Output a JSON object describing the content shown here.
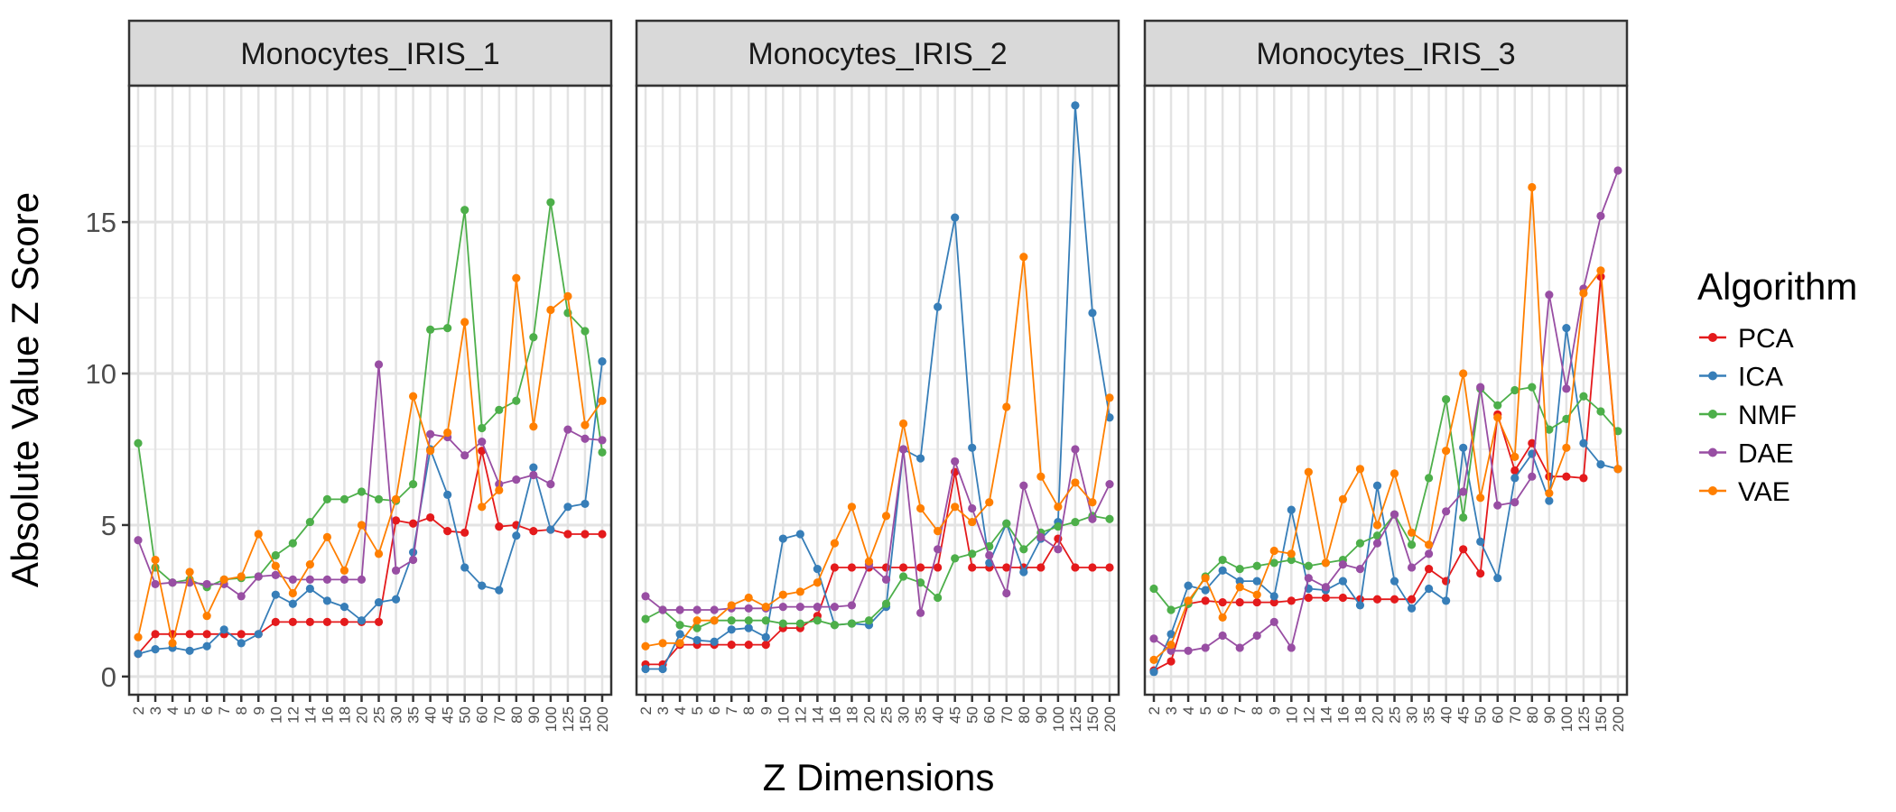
{
  "chart_data": {
    "type": "line",
    "xlabel": "Z Dimensions",
    "ylabel": "Absolute Value Z Score",
    "ylim": [
      -0.6,
      19.5
    ],
    "yticks": [
      0,
      5,
      10,
      15
    ],
    "grid": true,
    "legend": {
      "title": "Algorithm",
      "placement": "right"
    },
    "categories": [
      "2",
      "3",
      "4",
      "5",
      "6",
      "7",
      "8",
      "9",
      "10",
      "12",
      "14",
      "16",
      "18",
      "20",
      "25",
      "30",
      "35",
      "40",
      "45",
      "50",
      "60",
      "70",
      "80",
      "90",
      "100",
      "125",
      "150",
      "200"
    ],
    "series_styles": [
      {
        "name": "PCA",
        "color": "#E41A1C"
      },
      {
        "name": "ICA",
        "color": "#377EB8"
      },
      {
        "name": "NMF",
        "color": "#4DAF4A"
      },
      {
        "name": "DAE",
        "color": "#984EA3"
      },
      {
        "name": "VAE",
        "color": "#FF7F00"
      }
    ],
    "panels": [
      {
        "title": "Monocytes_IRIS_1",
        "series": [
          {
            "name": "PCA",
            "values": [
              0.75,
              1.4,
              1.4,
              1.4,
              1.4,
              1.4,
              1.4,
              1.4,
              1.8,
              1.8,
              1.8,
              1.8,
              1.8,
              1.8,
              1.8,
              5.15,
              5.05,
              5.25,
              4.8,
              4.75,
              7.45,
              4.95,
              5.0,
              4.8,
              4.85,
              4.7,
              4.7,
              4.7
            ]
          },
          {
            "name": "ICA",
            "values": [
              0.75,
              0.9,
              0.95,
              0.85,
              1.0,
              1.55,
              1.1,
              1.4,
              2.7,
              2.4,
              2.9,
              2.5,
              2.3,
              1.85,
              2.45,
              2.55,
              4.1,
              7.5,
              6.0,
              3.6,
              3.0,
              2.85,
              4.65,
              6.9,
              4.85,
              5.6,
              5.7,
              10.4
            ]
          },
          {
            "name": "NMF",
            "values": [
              7.7,
              3.6,
              3.1,
              3.2,
              2.95,
              3.2,
              3.25,
              3.3,
              4.0,
              4.4,
              5.1,
              5.85,
              5.85,
              6.1,
              5.85,
              5.8,
              6.35,
              11.45,
              11.5,
              15.4,
              8.2,
              8.8,
              9.1,
              11.2,
              15.65,
              12.0,
              11.4,
              7.4
            ]
          },
          {
            "name": "DAE",
            "values": [
              4.5,
              3.05,
              3.1,
              3.1,
              3.05,
              3.05,
              2.65,
              3.3,
              3.35,
              3.2,
              3.2,
              3.2,
              3.2,
              3.2,
              10.3,
              3.5,
              3.85,
              8.0,
              7.9,
              7.3,
              7.75,
              6.35,
              6.5,
              6.65,
              6.35,
              8.15,
              7.85,
              7.8
            ]
          },
          {
            "name": "VAE",
            "values": [
              1.3,
              3.85,
              1.1,
              3.45,
              2.0,
              3.2,
              3.3,
              4.7,
              3.65,
              2.75,
              3.7,
              4.6,
              3.5,
              5.0,
              4.05,
              5.85,
              9.25,
              7.45,
              8.05,
              11.7,
              5.6,
              6.15,
              13.15,
              8.25,
              12.1,
              12.55,
              8.3,
              9.1
            ]
          }
        ]
      },
      {
        "title": "Monocytes_IRIS_2",
        "series": [
          {
            "name": "PCA",
            "values": [
              0.4,
              0.4,
              1.05,
              1.05,
              1.05,
              1.05,
              1.05,
              1.05,
              1.6,
              1.6,
              2.0,
              3.6,
              3.6,
              3.6,
              3.6,
              3.6,
              3.6,
              3.6,
              6.75,
              3.6,
              3.6,
              3.6,
              3.6,
              3.6,
              4.55,
              3.6,
              3.6,
              3.6
            ]
          },
          {
            "name": "ICA",
            "values": [
              0.25,
              0.25,
              1.4,
              1.2,
              1.15,
              1.55,
              1.6,
              1.3,
              4.55,
              4.7,
              3.55,
              1.7,
              1.75,
              1.7,
              2.3,
              7.5,
              7.2,
              12.2,
              15.15,
              7.55,
              3.75,
              5.05,
              3.45,
              4.55,
              5.1,
              18.85,
              12.0,
              8.55
            ]
          },
          {
            "name": "NMF",
            "values": [
              1.9,
              2.2,
              1.7,
              1.6,
              1.85,
              1.85,
              1.85,
              1.85,
              1.75,
              1.75,
              1.85,
              1.7,
              1.75,
              1.85,
              2.4,
              3.3,
              3.1,
              2.6,
              3.9,
              4.05,
              4.3,
              5.05,
              4.2,
              4.75,
              4.95,
              5.1,
              5.3,
              5.2
            ]
          },
          {
            "name": "DAE",
            "values": [
              2.65,
              2.2,
              2.2,
              2.2,
              2.2,
              2.25,
              2.25,
              2.25,
              2.3,
              2.3,
              2.3,
              2.3,
              2.35,
              3.7,
              3.2,
              7.5,
              2.1,
              4.2,
              7.1,
              5.55,
              4.0,
              2.75,
              6.3,
              4.6,
              4.2,
              7.5,
              5.2,
              6.35
            ]
          },
          {
            "name": "VAE",
            "values": [
              1.0,
              1.1,
              1.1,
              1.85,
              1.85,
              2.35,
              2.6,
              2.3,
              2.7,
              2.8,
              3.1,
              4.4,
              5.6,
              3.8,
              5.3,
              8.35,
              5.55,
              4.8,
              5.6,
              5.1,
              5.75,
              8.9,
              13.85,
              6.6,
              5.6,
              6.4,
              5.75,
              9.2
            ]
          }
        ]
      },
      {
        "title": "Monocytes_IRIS_3",
        "series": [
          {
            "name": "PCA",
            "values": [
              0.2,
              0.5,
              2.4,
              2.5,
              2.45,
              2.45,
              2.45,
              2.45,
              2.5,
              2.6,
              2.6,
              2.6,
              2.55,
              2.55,
              2.55,
              2.55,
              3.55,
              3.15,
              4.2,
              3.4,
              8.65,
              6.8,
              7.7,
              6.6,
              6.6,
              6.55,
              13.2,
              6.85
            ]
          },
          {
            "name": "ICA",
            "values": [
              0.15,
              1.4,
              3.0,
              2.85,
              3.5,
              3.15,
              3.15,
              2.65,
              5.5,
              2.9,
              2.85,
              3.15,
              2.35,
              6.3,
              3.15,
              2.25,
              2.9,
              2.5,
              7.55,
              4.45,
              3.25,
              6.55,
              7.35,
              5.8,
              11.5,
              7.7,
              7.0,
              6.85
            ]
          },
          {
            "name": "NMF",
            "values": [
              2.9,
              2.2,
              2.4,
              3.3,
              3.85,
              3.55,
              3.65,
              3.75,
              3.85,
              3.65,
              3.75,
              3.85,
              4.4,
              4.65,
              5.35,
              4.35,
              6.55,
              9.15,
              5.25,
              9.5,
              8.95,
              9.45,
              9.55,
              8.15,
              8.5,
              9.25,
              8.75,
              8.1
            ]
          },
          {
            "name": "DAE",
            "values": [
              1.25,
              0.85,
              0.85,
              0.95,
              1.35,
              0.95,
              1.35,
              1.8,
              0.95,
              3.25,
              2.95,
              3.7,
              3.55,
              4.4,
              5.35,
              3.6,
              4.05,
              5.45,
              6.1,
              9.55,
              5.65,
              5.75,
              6.6,
              12.6,
              9.5,
              12.8,
              15.2,
              16.7
            ]
          },
          {
            "name": "VAE",
            "values": [
              0.55,
              1.05,
              2.5,
              3.25,
              1.95,
              2.95,
              2.7,
              4.15,
              4.05,
              6.75,
              3.75,
              5.85,
              6.85,
              5.0,
              6.7,
              4.75,
              4.35,
              7.45,
              10.0,
              5.9,
              8.55,
              7.25,
              16.15,
              6.05,
              7.55,
              12.65,
              13.4,
              6.85
            ]
          }
        ]
      }
    ]
  }
}
